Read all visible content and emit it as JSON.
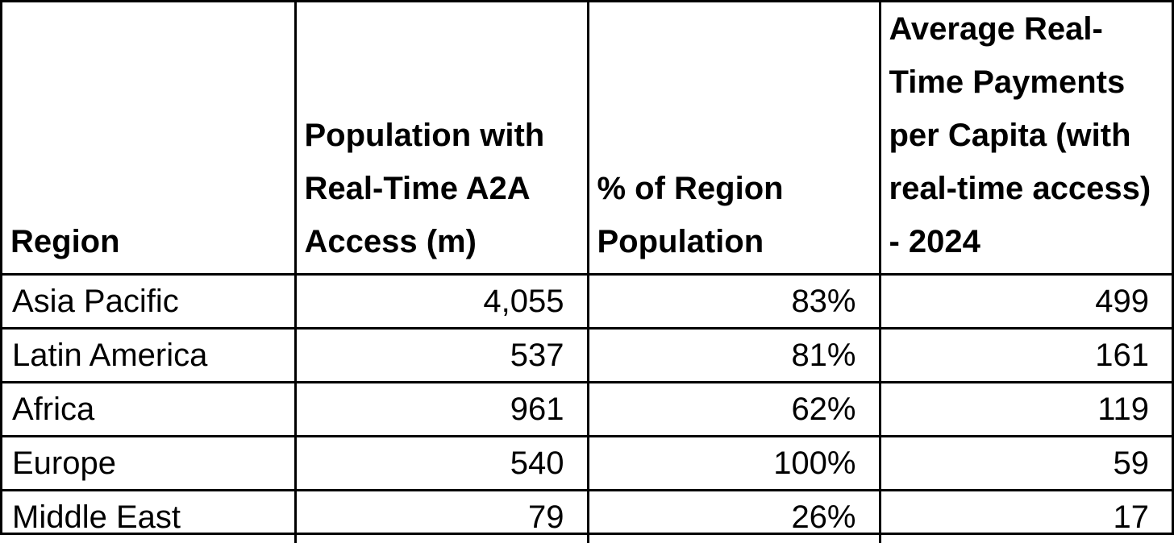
{
  "table": {
    "headers": [
      "Region",
      "Population with Real-Time A2A Access (m)",
      "% of Region Population",
      "Average Real-Time Payments per Capita (with real-time access) - 2024"
    ],
    "rows": [
      {
        "region": "Asia Pacific",
        "population": "4,055",
        "percent": "83%",
        "payments": "499"
      },
      {
        "region": "Latin America",
        "population": "537",
        "percent": "81%",
        "payments": "161"
      },
      {
        "region": "Africa",
        "population": "961",
        "percent": "62%",
        "payments": "119"
      },
      {
        "region": "Europe",
        "population": "540",
        "percent": "100%",
        "payments": "59"
      },
      {
        "region": "Middle East",
        "population": "79",
        "percent": "26%",
        "payments": "17"
      }
    ]
  }
}
